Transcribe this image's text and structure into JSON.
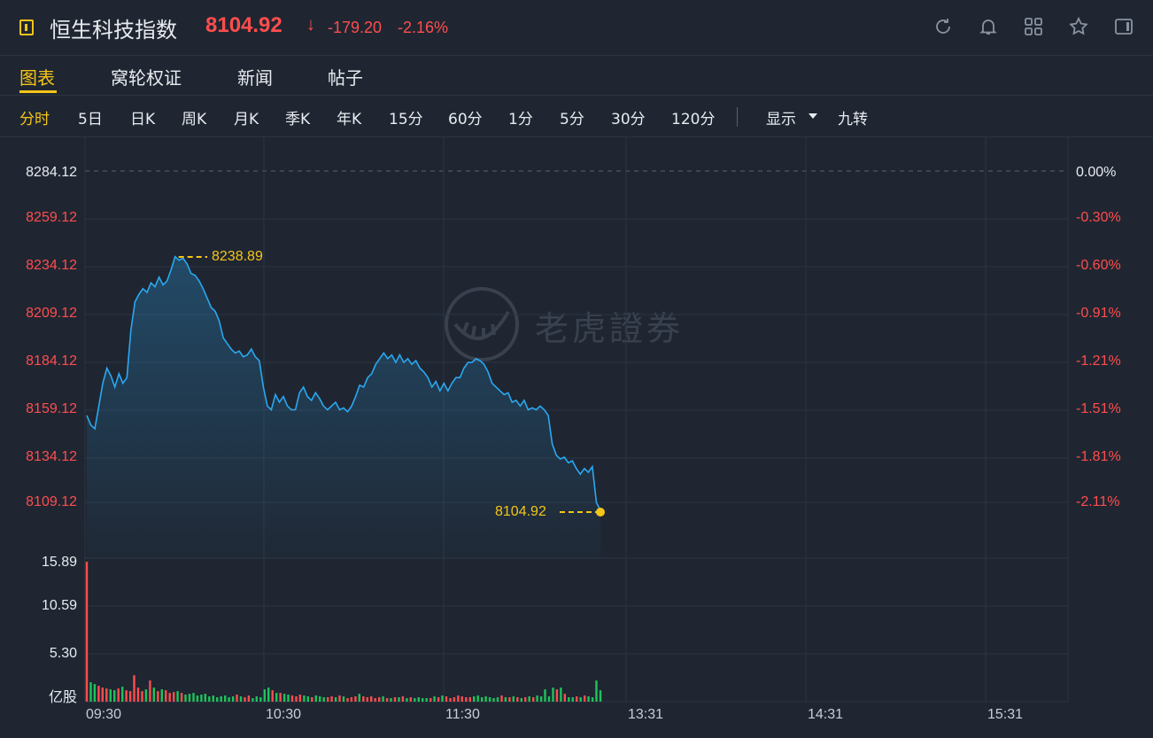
{
  "header": {
    "title": "恒生科技指数",
    "price": "8104.92",
    "arrow": "↓",
    "change": "-179.20",
    "change_pct": "-2.16%",
    "icons": [
      "refresh-icon",
      "bell-icon",
      "grid-icon",
      "star-icon",
      "panel-icon"
    ]
  },
  "tabs": [
    {
      "label": "图表",
      "active": true
    },
    {
      "label": "窝轮权证",
      "active": false
    },
    {
      "label": "新闻",
      "active": false
    },
    {
      "label": "帖子",
      "active": false
    }
  ],
  "periods": {
    "items": [
      "分时",
      "5日",
      "日K",
      "周K",
      "月K",
      "季K",
      "年K",
      "15分",
      "60分",
      "1分",
      "5分",
      "30分",
      "120分"
    ],
    "active": "分时",
    "display": "显示",
    "nine": "九转"
  },
  "colors": {
    "up": "#ff4d4d",
    "down": "#1ec35a",
    "accent": "#f5c518",
    "line": "#2aa8f0"
  },
  "chart_data": {
    "type": "line",
    "price_axis": [
      "8284.12",
      "8259.12",
      "8234.12",
      "8209.12",
      "8184.12",
      "8159.12",
      "8134.12",
      "8109.12"
    ],
    "pct_axis": [
      "0.00%",
      "-0.30%",
      "-0.60%",
      "-0.91%",
      "-1.21%",
      "-1.51%",
      "-1.81%",
      "-2.11%"
    ],
    "volume_axis": [
      "15.89",
      "10.59",
      "5.30"
    ],
    "volume_unit": "亿股",
    "x_labels": [
      "09:30",
      "10:30",
      "11:30",
      "13:31",
      "14:31",
      "15:31"
    ],
    "prev_close": 8284.12,
    "high_label": "8238.89",
    "last_label": "8104.92",
    "series": [
      {
        "values": [
          8155,
          8150,
          8148,
          8160,
          8172,
          8180,
          8176,
          8170,
          8177,
          8172,
          8175,
          8200,
          8215,
          8219,
          8222,
          8220,
          8225,
          8223,
          8228,
          8224,
          8226,
          8232,
          8238.89,
          8237,
          8238,
          8235,
          8230,
          8229,
          8226,
          8222,
          8217,
          8212,
          8210,
          8205,
          8196,
          8193,
          8190,
          8188,
          8189,
          8186,
          8187,
          8190,
          8186,
          8184,
          8170,
          8160,
          8158,
          8166,
          8162,
          8165,
          8160,
          8158,
          8158,
          8167,
          8170,
          8165,
          8163,
          8167,
          8164,
          8160,
          8158,
          8160,
          8162,
          8158,
          8159,
          8157,
          8160,
          8165,
          8171,
          8170,
          8175,
          8177,
          8182,
          8185,
          8188,
          8185,
          8187,
          8183,
          8187,
          8183,
          8185,
          8182,
          8184,
          8180,
          8178,
          8175,
          8170,
          8173,
          8168,
          8172,
          8168,
          8172,
          8175,
          8175,
          8180,
          8183,
          8183,
          8185,
          8184,
          8182,
          8178,
          8172,
          8170,
          8168,
          8166,
          8167,
          8162,
          8163,
          8160,
          8163,
          8158,
          8159,
          8158,
          8160,
          8158,
          8155,
          8140,
          8134,
          8132,
          8133,
          8130,
          8131,
          8127,
          8124,
          8127,
          8125,
          8128,
          8109,
          8104.92
        ]
      },
      {
        "volume": [
          15.89,
          2.2,
          2.0,
          1.8,
          1.6,
          1.5,
          1.4,
          1.3,
          1.5,
          1.7,
          1.3,
          1.2,
          3.0,
          1.6,
          1.2,
          1.4,
          2.4,
          1.6,
          1.2,
          1.4,
          1.3,
          1.0,
          1.1,
          1.2,
          1.0,
          0.8,
          0.9,
          1.0,
          0.7,
          0.8,
          0.9,
          0.6,
          0.7,
          0.5,
          0.6,
          0.7,
          0.5,
          0.6,
          0.8,
          0.6,
          0.5,
          0.7,
          0.4,
          0.6,
          0.5,
          1.4,
          1.6,
          1.3,
          1.0,
          1.0,
          0.9,
          0.8,
          0.7,
          0.6,
          0.8,
          0.7,
          0.6,
          0.5,
          0.7,
          0.6,
          0.5,
          0.5,
          0.6,
          0.5,
          0.7,
          0.6,
          0.4,
          0.5,
          0.6,
          0.9,
          0.6,
          0.5,
          0.6,
          0.4,
          0.5,
          0.6,
          0.4,
          0.4,
          0.5,
          0.5,
          0.6,
          0.4,
          0.5,
          0.4,
          0.5,
          0.4,
          0.4,
          0.4,
          0.6,
          0.5,
          0.7,
          0.6,
          0.4,
          0.5,
          0.7,
          0.6,
          0.5,
          0.5,
          0.6,
          0.7,
          0.5,
          0.6,
          0.5,
          0.4,
          0.5,
          0.7,
          0.5,
          0.5,
          0.6,
          0.5,
          0.4,
          0.5,
          0.6,
          0.5,
          0.7,
          0.6,
          1.4,
          0.6,
          1.6,
          1.4,
          1.6,
          0.9,
          0.5,
          0.5,
          0.6,
          0.5,
          0.7,
          0.6,
          0.5,
          2.4,
          1.3
        ]
      }
    ]
  },
  "watermark": "老虎證券"
}
